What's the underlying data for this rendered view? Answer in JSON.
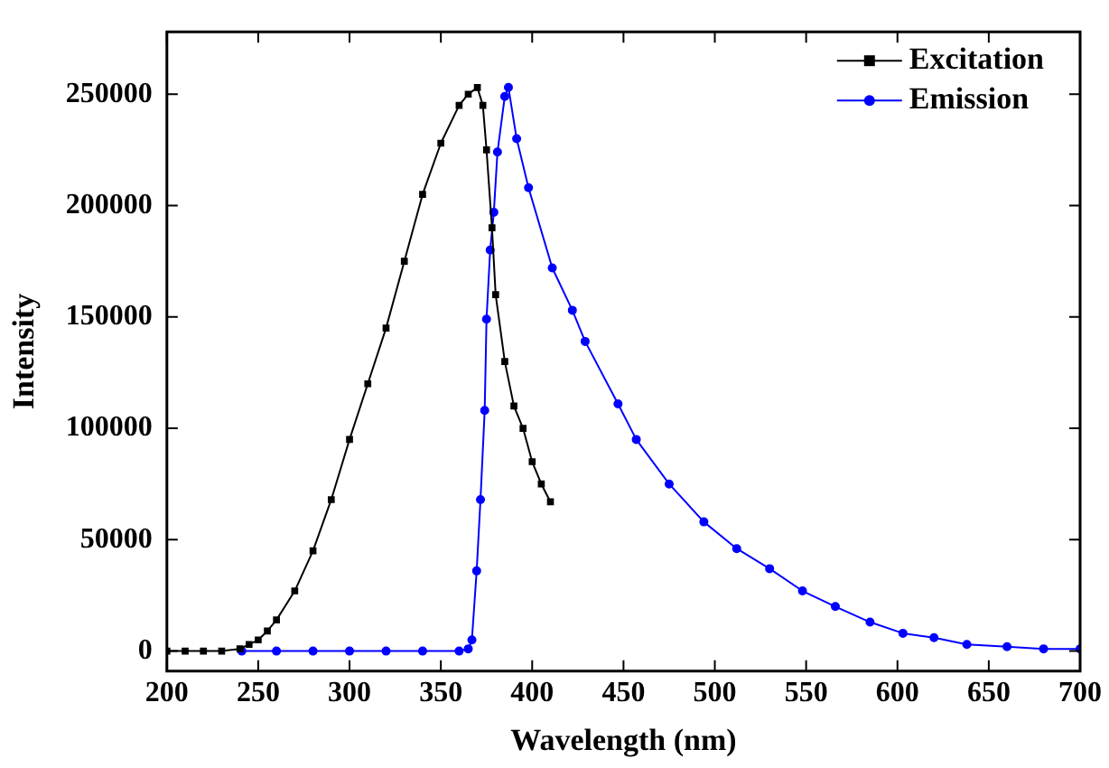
{
  "chart_data": {
    "type": "line",
    "xlabel": "Wavelength (nm)",
    "ylabel": "Intensity",
    "xlim": [
      200,
      700
    ],
    "ylim": [
      -9000,
      278000
    ],
    "xticks": [
      200,
      250,
      300,
      350,
      400,
      450,
      500,
      550,
      600,
      650,
      700
    ],
    "yticks": [
      0,
      50000,
      100000,
      150000,
      200000,
      250000
    ],
    "grid": false,
    "legend": "top right",
    "line_style": "solid",
    "series": [
      {
        "name": "Excitation",
        "color": "#000000",
        "marker": "square",
        "x": [
          200,
          210,
          220,
          230,
          240,
          245,
          250,
          255,
          260,
          270,
          280,
          290,
          300,
          310,
          320,
          330,
          340,
          350,
          360,
          365,
          370,
          373,
          375,
          378,
          380,
          385,
          390,
          395,
          400,
          405,
          410
        ],
        "values": [
          0,
          0,
          0,
          0,
          1000,
          3000,
          5000,
          9000,
          14000,
          27000,
          45000,
          68000,
          95000,
          120000,
          145000,
          175000,
          205000,
          228000,
          245000,
          250000,
          253000,
          245000,
          225000,
          190000,
          160000,
          130000,
          110000,
          100000,
          85000,
          75000,
          67000
        ]
      },
      {
        "name": "Emission",
        "color": "#0000ff",
        "marker": "circle",
        "x": [
          241,
          260,
          280,
          300,
          320,
          340,
          360,
          365,
          367,
          369.6,
          371.7,
          374,
          375,
          377,
          379,
          381,
          385,
          387,
          391.5,
          398,
          411,
          422,
          429,
          447,
          457,
          475,
          494,
          512,
          530,
          548,
          566,
          585,
          603,
          620,
          638,
          660,
          680,
          700
        ],
        "values": [
          0,
          0,
          0,
          0,
          0,
          0,
          0,
          1000,
          5000,
          36000,
          68000,
          108000,
          149000,
          180000,
          197000,
          224000,
          249000,
          253000,
          230000,
          208000,
          172000,
          153000,
          139000,
          111000,
          95000,
          75000,
          58000,
          46000,
          37000,
          27000,
          20000,
          13000,
          8000,
          6000,
          3000,
          2000,
          1000,
          1000
        ]
      }
    ]
  }
}
